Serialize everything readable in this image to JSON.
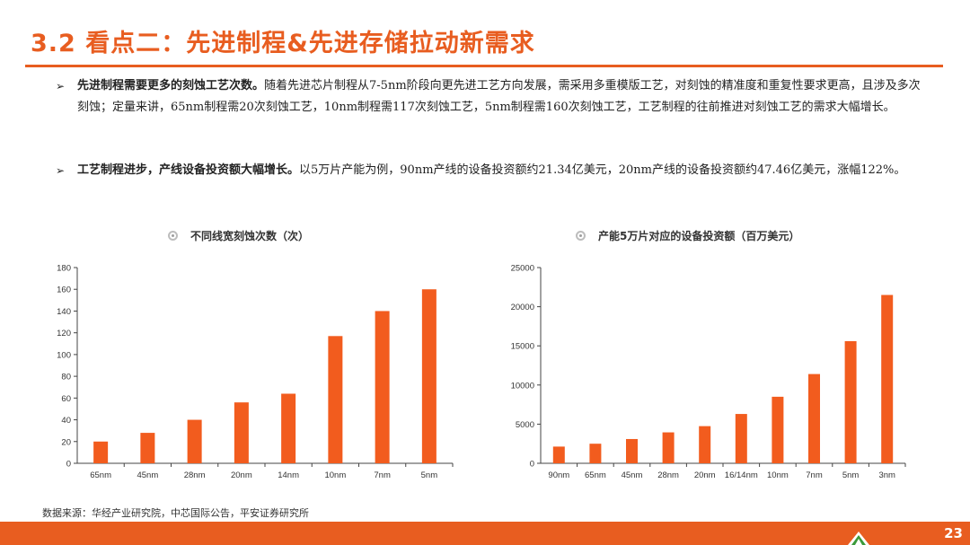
{
  "title": "3.2 看点二：先进制程&先进存储拉动新需求",
  "bullets": [
    {
      "marker": "➢",
      "bold": "先进制程需要更多的刻蚀工艺次数。",
      "text": "随着先进芯片制程从7-5nm阶段向更先进工艺方向发展，需采用多重模版工艺，对刻蚀的精准度和重复性要求更高，且涉及多次刻蚀；定量来讲，65nm制程需20次刻蚀工艺，10nm制程需117次刻蚀工艺，5nm制程需160次刻蚀工艺，工艺制程的往前推进对刻蚀工艺的需求大幅增长。"
    },
    {
      "marker": "➢",
      "bold": "工艺制程进步，产线设备投资额大幅增长。",
      "text": "以5万片产能为例，90nm产线的设备投资额约21.34亿美元，20nm产线的设备投资额约47.46亿美元，涨幅122%。"
    }
  ],
  "source": "数据来源：华经产业研究院，中芯国际公告，平安证券研究所",
  "page_number": "23",
  "colors": {
    "accent": "#E85D20",
    "bar": "#F25C1E"
  },
  "chart_data": [
    {
      "type": "bar",
      "title": "不同线宽刻蚀次数（次）",
      "categories": [
        "65nm",
        "45nm",
        "28nm",
        "20nm",
        "14nm",
        "10nm",
        "7nm",
        "5nm"
      ],
      "values": [
        20,
        28,
        40,
        56,
        64,
        117,
        140,
        160
      ],
      "ylim": [
        0,
        180
      ],
      "yticks": [
        "0",
        "20",
        "40",
        "60",
        "80",
        "100",
        "120",
        "140",
        "160",
        "180"
      ],
      "xlabel": "",
      "ylabel": "",
      "grid": false,
      "legend": "none"
    },
    {
      "type": "bar",
      "title": "产能5万片对应的设备投资额（百万美元）",
      "categories": [
        "90nm",
        "65nm",
        "45nm",
        "28nm",
        "20nm",
        "16/14nm",
        "10nm",
        "7nm",
        "5nm",
        "3nm"
      ],
      "values": [
        2134,
        2500,
        3100,
        3950,
        4746,
        6300,
        8500,
        11400,
        15600,
        21500
      ],
      "ylim": [
        0,
        25000
      ],
      "yticks": [
        "0",
        "5000",
        "10000",
        "15000",
        "20000",
        "25000"
      ],
      "xlabel": "",
      "ylabel": "",
      "grid": false,
      "legend": "none"
    }
  ]
}
